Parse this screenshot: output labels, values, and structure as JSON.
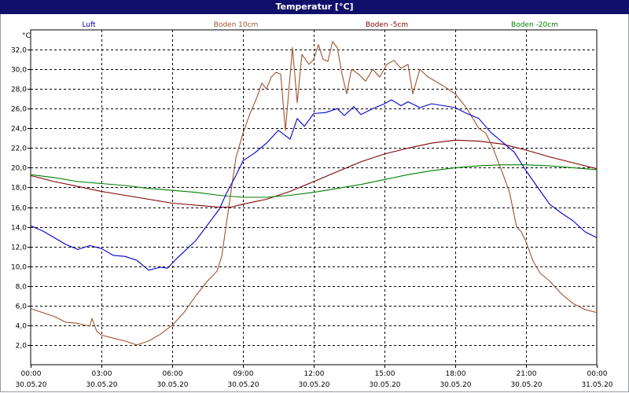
{
  "window": {
    "title": "Temperatur [°C]"
  },
  "chart_data": {
    "type": "line",
    "title": "Temperatur [°C]",
    "ylabel": "°C",
    "xlabel": "",
    "ylim": [
      0,
      34
    ],
    "xlim": [
      0,
      24
    ],
    "grid": true,
    "legend_placement": "top",
    "y_ticks": [
      "2,0",
      "4,0",
      "6,0",
      "8,0",
      "10,0",
      "12,0",
      "14,0",
      "16,0",
      "18,0",
      "20,0",
      "22,0",
      "24,0",
      "26,0",
      "28,0",
      "30,0",
      "32,0"
    ],
    "x_ticks": [
      {
        "time": "00:00",
        "date": "30.05.20"
      },
      {
        "time": "03:00",
        "date": "30.05.20"
      },
      {
        "time": "06:00",
        "date": "30.05.20"
      },
      {
        "time": "09:00",
        "date": "30.05.20"
      },
      {
        "time": "12:00",
        "date": "30.05.20"
      },
      {
        "time": "15:00",
        "date": "30.05.20"
      },
      {
        "time": "18:00",
        "date": "30.05.20"
      },
      {
        "time": "21:00",
        "date": "30.05.20"
      },
      {
        "time": "00:00",
        "date": "31.05.20"
      }
    ],
    "series": [
      {
        "name": "Luft",
        "color": "#0000cc",
        "points": [
          [
            0,
            14.1
          ],
          [
            0.5,
            13.6
          ],
          [
            1,
            12.9
          ],
          [
            1.5,
            12.2
          ],
          [
            2,
            11.7
          ],
          [
            2.5,
            12.1
          ],
          [
            3,
            11.8
          ],
          [
            3.5,
            11.1
          ],
          [
            4,
            11.0
          ],
          [
            4.5,
            10.6
          ],
          [
            5,
            9.6
          ],
          [
            5.5,
            9.9
          ],
          [
            5.8,
            9.8
          ],
          [
            6.2,
            10.8
          ],
          [
            7,
            12.6
          ],
          [
            7.5,
            14.2
          ],
          [
            8,
            15.8
          ],
          [
            8.3,
            17.4
          ],
          [
            8.7,
            19.2
          ],
          [
            9,
            20.7
          ],
          [
            9.5,
            21.5
          ],
          [
            10,
            22.5
          ],
          [
            10.5,
            23.8
          ],
          [
            11,
            22.9
          ],
          [
            11.3,
            25.0
          ],
          [
            11.6,
            24.2
          ],
          [
            12,
            25.5
          ],
          [
            12.5,
            25.6
          ],
          [
            13,
            26.0
          ],
          [
            13.3,
            25.3
          ],
          [
            13.7,
            26.2
          ],
          [
            14,
            25.4
          ],
          [
            14.5,
            26.0
          ],
          [
            15,
            26.5
          ],
          [
            15.3,
            26.9
          ],
          [
            15.7,
            26.3
          ],
          [
            16,
            26.7
          ],
          [
            16.5,
            26.1
          ],
          [
            17,
            26.5
          ],
          [
            17.5,
            26.3
          ],
          [
            18,
            26.1
          ],
          [
            18.5,
            25.5
          ],
          [
            19,
            25.0
          ],
          [
            19.5,
            23.6
          ],
          [
            20,
            22.6
          ],
          [
            20.5,
            21.6
          ],
          [
            21,
            19.7
          ],
          [
            21.5,
            18.0
          ],
          [
            22,
            16.3
          ],
          [
            22.5,
            15.4
          ],
          [
            23,
            14.6
          ],
          [
            23.5,
            13.5
          ],
          [
            24,
            12.9
          ]
        ]
      },
      {
        "name": "Boden 10cm",
        "color": "#a0522d",
        "points": [
          [
            0,
            5.7
          ],
          [
            0.5,
            5.3
          ],
          [
            1,
            4.9
          ],
          [
            1.5,
            4.3
          ],
          [
            2,
            4.2
          ],
          [
            2.5,
            3.9
          ],
          [
            2.6,
            4.7
          ],
          [
            2.8,
            3.4
          ],
          [
            3,
            3.0
          ],
          [
            3.5,
            2.7
          ],
          [
            4,
            2.4
          ],
          [
            4.5,
            2.0
          ],
          [
            5,
            2.4
          ],
          [
            5.5,
            3.1
          ],
          [
            6,
            4.0
          ],
          [
            6.5,
            5.3
          ],
          [
            7,
            7.0
          ],
          [
            7.5,
            8.5
          ],
          [
            7.9,
            9.5
          ],
          [
            8.1,
            11.0
          ],
          [
            8.4,
            16.0
          ],
          [
            8.7,
            21.0
          ],
          [
            9,
            23.5
          ],
          [
            9.3,
            25.5
          ],
          [
            9.6,
            27.2
          ],
          [
            9.8,
            28.6
          ],
          [
            10,
            28.0
          ],
          [
            10.2,
            29.2
          ],
          [
            10.4,
            29.7
          ],
          [
            10.6,
            29.5
          ],
          [
            10.8,
            23.8
          ],
          [
            11.1,
            32.2
          ],
          [
            11.3,
            26.6
          ],
          [
            11.5,
            31.5
          ],
          [
            11.8,
            30.5
          ],
          [
            12,
            31.0
          ],
          [
            12.2,
            32.5
          ],
          [
            12.4,
            31.0
          ],
          [
            12.6,
            30.8
          ],
          [
            12.8,
            32.8
          ],
          [
            13.0,
            32.2
          ],
          [
            13.2,
            29.5
          ],
          [
            13.4,
            27.5
          ],
          [
            13.6,
            30.0
          ],
          [
            13.9,
            29.5
          ],
          [
            14.2,
            28.8
          ],
          [
            14.5,
            30.0
          ],
          [
            14.8,
            29.2
          ],
          [
            15.1,
            30.5
          ],
          [
            15.4,
            30.9
          ],
          [
            15.7,
            30.1
          ],
          [
            16,
            30.5
          ],
          [
            16.2,
            27.5
          ],
          [
            16.5,
            30.0
          ],
          [
            16.8,
            29.3
          ],
          [
            17,
            29.0
          ],
          [
            17.5,
            28.3
          ],
          [
            18,
            27.5
          ],
          [
            18.5,
            26.0
          ],
          [
            19,
            24.0
          ],
          [
            19.3,
            23.5
          ],
          [
            19.6,
            22.0
          ],
          [
            20,
            19.5
          ],
          [
            20.3,
            17.5
          ],
          [
            20.6,
            14.0
          ],
          [
            20.8,
            13.5
          ],
          [
            21,
            12.5
          ],
          [
            21.3,
            10.5
          ],
          [
            21.6,
            9.3
          ],
          [
            22,
            8.5
          ],
          [
            22.5,
            7.2
          ],
          [
            23,
            6.2
          ],
          [
            23.5,
            5.6
          ],
          [
            24,
            5.3
          ]
        ]
      },
      {
        "name": "Boden -5cm",
        "color": "#800000",
        "points": [
          [
            0,
            19.2
          ],
          [
            1,
            18.6
          ],
          [
            2,
            18.1
          ],
          [
            3,
            17.6
          ],
          [
            4,
            17.2
          ],
          [
            5,
            16.8
          ],
          [
            6,
            16.4
          ],
          [
            7,
            16.2
          ],
          [
            7.5,
            16.1
          ],
          [
            8,
            16.0
          ],
          [
            8.5,
            16.0
          ],
          [
            9,
            16.3
          ],
          [
            10,
            16.8
          ],
          [
            11,
            17.6
          ],
          [
            12,
            18.6
          ],
          [
            13,
            19.6
          ],
          [
            14,
            20.6
          ],
          [
            15,
            21.4
          ],
          [
            16,
            22.0
          ],
          [
            17,
            22.5
          ],
          [
            18,
            22.8
          ],
          [
            19,
            22.7
          ],
          [
            20,
            22.4
          ],
          [
            21,
            21.8
          ],
          [
            22,
            21.1
          ],
          [
            23,
            20.5
          ],
          [
            24,
            19.9
          ]
        ]
      },
      {
        "name": "Boden -20cm",
        "color": "#008000",
        "points": [
          [
            0,
            19.3
          ],
          [
            1,
            19.0
          ],
          [
            2,
            18.6
          ],
          [
            3,
            18.4
          ],
          [
            4,
            18.2
          ],
          [
            5,
            17.9
          ],
          [
            6,
            17.7
          ],
          [
            7,
            17.5
          ],
          [
            8,
            17.2
          ],
          [
            9,
            17.0
          ],
          [
            10,
            17.0
          ],
          [
            11,
            17.2
          ],
          [
            12,
            17.5
          ],
          [
            13,
            17.9
          ],
          [
            14,
            18.3
          ],
          [
            15,
            18.8
          ],
          [
            16,
            19.3
          ],
          [
            17,
            19.7
          ],
          [
            18,
            20.0
          ],
          [
            19,
            20.2
          ],
          [
            20,
            20.3
          ],
          [
            21,
            20.3
          ],
          [
            22,
            20.2
          ],
          [
            23,
            20.0
          ],
          [
            24,
            19.8
          ]
        ]
      }
    ]
  }
}
